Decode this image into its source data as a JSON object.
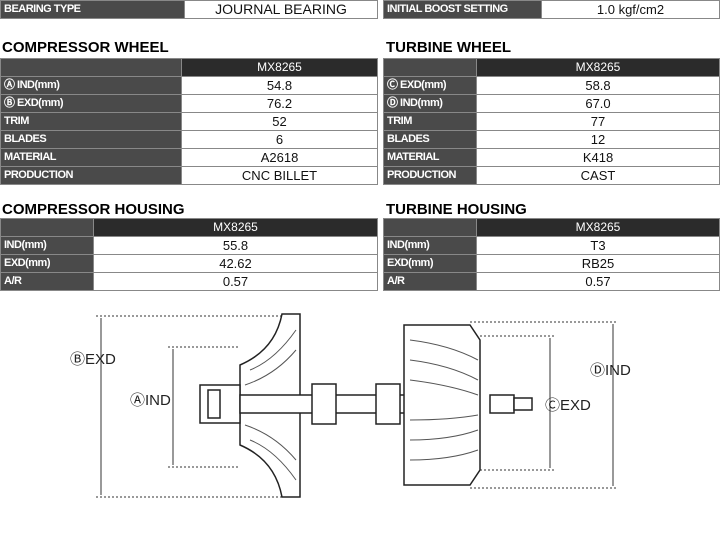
{
  "top": {
    "bearing_label": "BEARING TYPE",
    "bearing_value": "JOURNAL BEARING",
    "boost_label": "INITIAL BOOST SETTING",
    "boost_value": "1.0 kgf/cm2"
  },
  "compressor_wheel": {
    "title": "COMPRESSOR WHEEL",
    "model": "MX8265",
    "rows": [
      {
        "label": "Ⓐ IND(mm)",
        "value": "54.8"
      },
      {
        "label": "Ⓑ EXD(mm)",
        "value": "76.2"
      },
      {
        "label": "TRIM",
        "value": "52"
      },
      {
        "label": "BLADES",
        "value": "6"
      },
      {
        "label": "MATERIAL",
        "value": "A2618"
      },
      {
        "label": "PRODUCTION",
        "value": "CNC BILLET"
      }
    ]
  },
  "turbine_wheel": {
    "title": "TURBINE WHEEL",
    "model": "MX8265",
    "rows": [
      {
        "label": "Ⓒ EXD(mm)",
        "value": "58.8"
      },
      {
        "label": "Ⓓ IND(mm)",
        "value": "67.0"
      },
      {
        "label": "TRIM",
        "value": "77"
      },
      {
        "label": "BLADES",
        "value": "12"
      },
      {
        "label": "MATERIAL",
        "value": "K418"
      },
      {
        "label": "PRODUCTION",
        "value": "CAST"
      }
    ]
  },
  "compressor_housing": {
    "title": "COMPRESSOR HOUSING",
    "model": "MX8265",
    "rows": [
      {
        "label": "IND(mm)",
        "value": "55.8"
      },
      {
        "label": "EXD(mm)",
        "value": "42.62"
      },
      {
        "label": "A/R",
        "value": "0.57"
      }
    ]
  },
  "turbine_housing": {
    "title": "TURBINE HOUSING",
    "model": "MX8265",
    "rows": [
      {
        "label": "IND(mm)",
        "value": "T3"
      },
      {
        "label": "EXD(mm)",
        "value": "RB25"
      },
      {
        "label": "A/R",
        "value": "0.57"
      }
    ]
  },
  "diagram": {
    "b_exd": "ⒷEXD",
    "a_ind": "ⒶIND",
    "c_exd": "ⒸEXD",
    "d_ind": "ⒹIND"
  }
}
